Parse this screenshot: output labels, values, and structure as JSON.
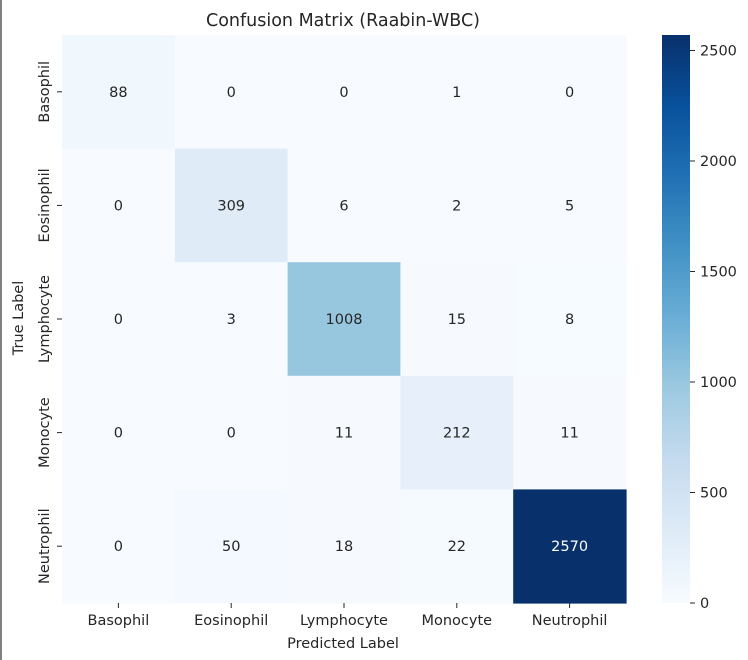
{
  "chart_data": {
    "type": "heatmap",
    "title": "Confusion Matrix (Raabin-WBC)",
    "xlabel": "Predicted Label",
    "ylabel": "True Label",
    "x_categories": [
      "Basophil",
      "Eosinophil",
      "Lymphocyte",
      "Monocyte",
      "Neutrophil"
    ],
    "y_categories": [
      "Basophil",
      "Eosinophil",
      "Lymphocyte",
      "Monocyte",
      "Neutrophil"
    ],
    "values": [
      [
        88,
        0,
        0,
        1,
        0
      ],
      [
        0,
        309,
        6,
        2,
        5
      ],
      [
        0,
        3,
        1008,
        15,
        8
      ],
      [
        0,
        0,
        11,
        212,
        11
      ],
      [
        0,
        50,
        18,
        22,
        2570
      ]
    ],
    "colormap": "Blues",
    "vmin": 0,
    "vmax": 2570,
    "colorbar_ticks": [
      0,
      500,
      1000,
      1500,
      2000,
      2500
    ],
    "colors": {
      "low": "#f7fbff",
      "high": "#08306b",
      "text_dark": "#262626",
      "text_light": "#ffffff"
    }
  }
}
